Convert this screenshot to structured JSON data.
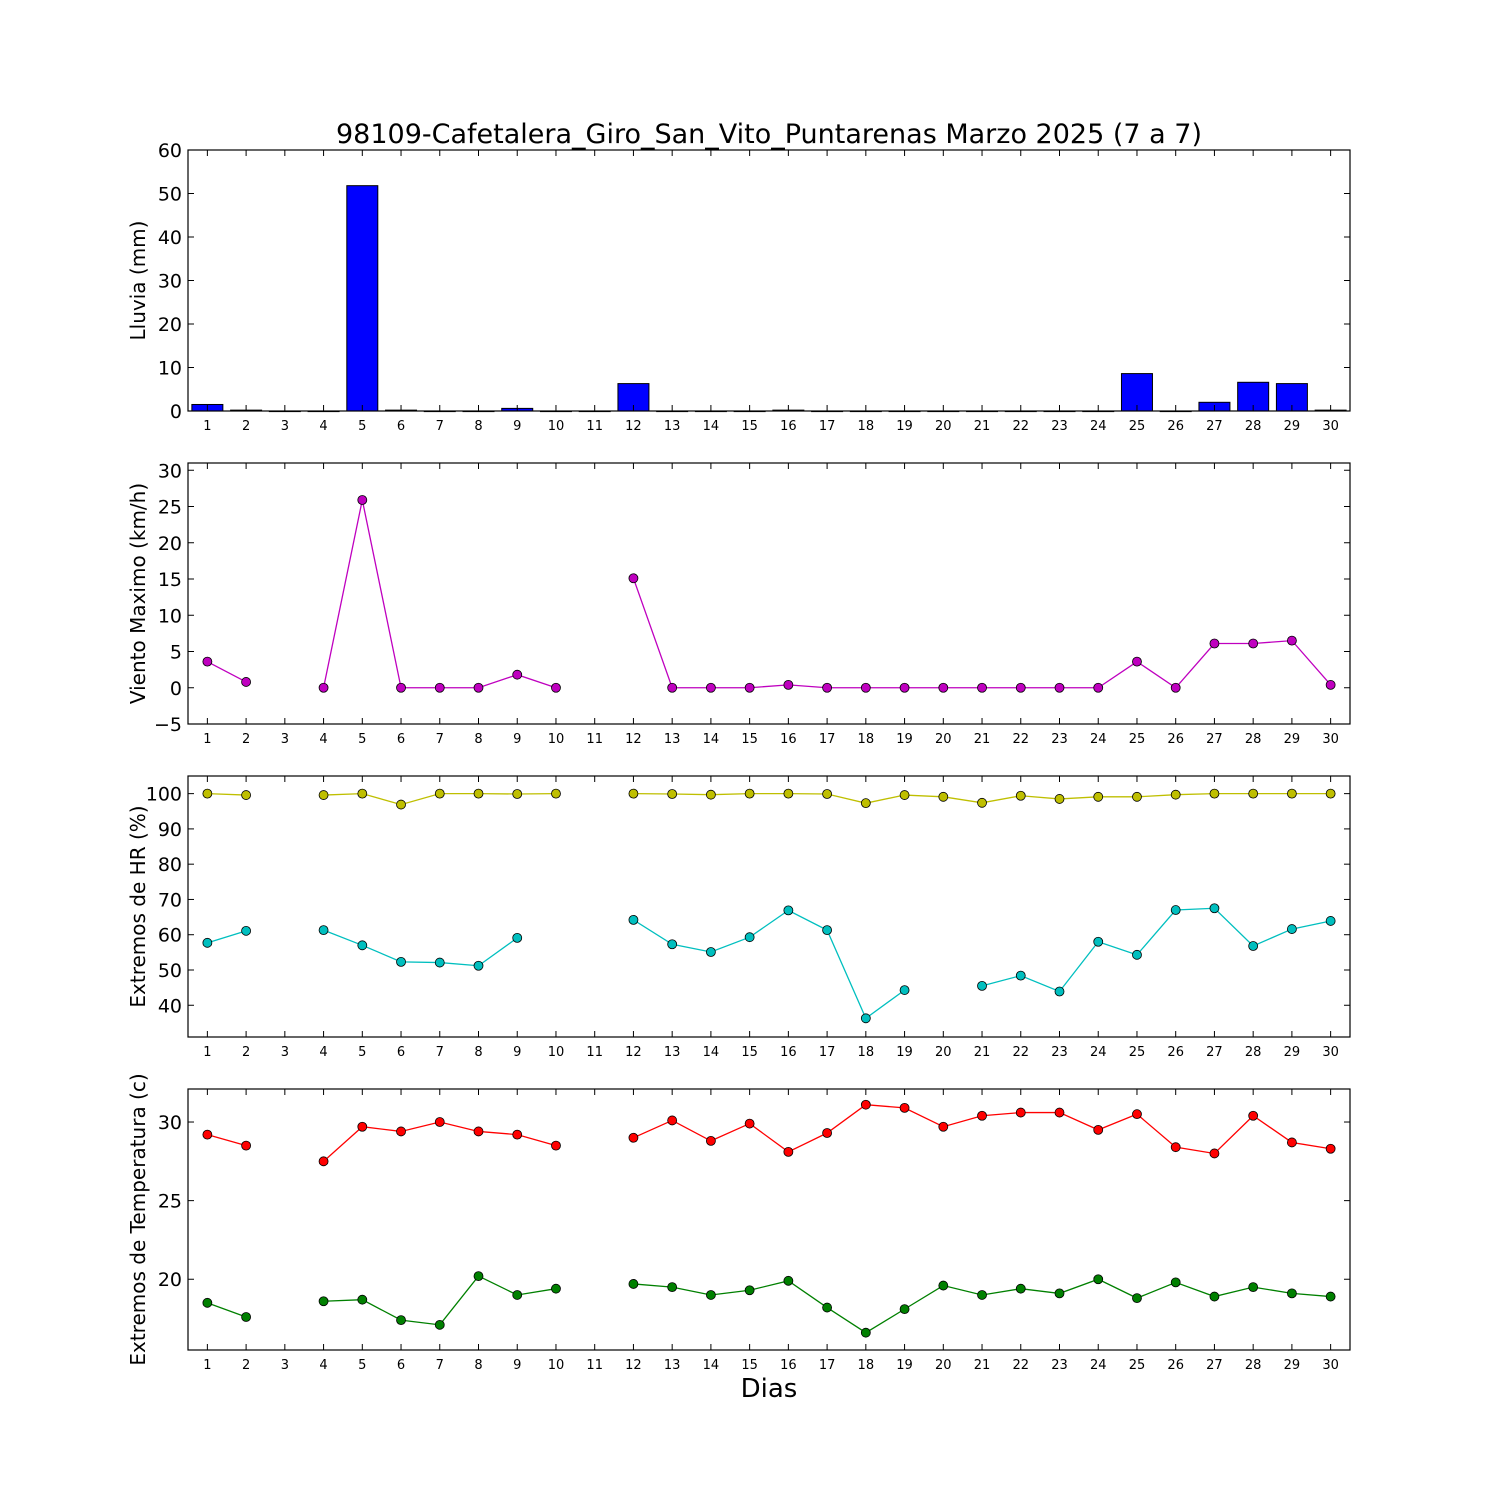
{
  "figure": {
    "title": "98109-Cafetalera_Giro_San_Vito_Puntarenas Marzo 2025  (7 a 7)",
    "xlabel": "Dias"
  },
  "chart_data": [
    {
      "type": "bar",
      "ylabel": "Lluvia (mm)",
      "ylim": [
        0,
        60
      ],
      "yticks": [
        0,
        10,
        20,
        30,
        40,
        50,
        60
      ],
      "xlim": [
        0.5,
        30.5
      ],
      "categories": [
        "1",
        "2",
        "3",
        "4",
        "5",
        "6",
        "7",
        "8",
        "9",
        "10",
        "11",
        "12",
        "13",
        "14",
        "15",
        "16",
        "17",
        "18",
        "19",
        "20",
        "21",
        "22",
        "23",
        "24",
        "25",
        "26",
        "27",
        "28",
        "29",
        "30"
      ],
      "grid": false,
      "color": "#0000ff",
      "values": [
        1.5,
        0.2,
        0,
        0,
        51.8,
        0.2,
        0,
        0,
        0.6,
        0,
        0,
        6.3,
        0,
        0,
        0,
        0.2,
        0,
        0,
        0,
        0,
        0,
        0,
        0,
        0,
        8.6,
        0,
        2.0,
        6.6,
        6.3,
        0.2
      ]
    },
    {
      "type": "line",
      "ylabel": "Viento Maximo (km/h)",
      "ylim": [
        -5,
        31
      ],
      "yticks": [
        -5,
        0,
        5,
        10,
        15,
        20,
        25,
        30
      ],
      "xlim": [
        0.5,
        30.5
      ],
      "categories": [
        "1",
        "2",
        "3",
        "4",
        "5",
        "6",
        "7",
        "8",
        "9",
        "10",
        "11",
        "12",
        "13",
        "14",
        "15",
        "16",
        "17",
        "18",
        "19",
        "20",
        "21",
        "22",
        "23",
        "24",
        "25",
        "26",
        "27",
        "28",
        "29",
        "30"
      ],
      "grid": false,
      "series": [
        {
          "color": "#bf00bf",
          "values": [
            3.6,
            0.8,
            null,
            0,
            25.9,
            0,
            0,
            0,
            1.8,
            0,
            null,
            15.1,
            0,
            0,
            0,
            0.4,
            0,
            0,
            0,
            0,
            0,
            0,
            0,
            0,
            3.6,
            0,
            6.1,
            6.1,
            6.5,
            0.4
          ]
        }
      ]
    },
    {
      "type": "line",
      "ylabel": "Extremos de HR (%)",
      "ylim": [
        31,
        105
      ],
      "yticks": [
        40,
        50,
        60,
        70,
        80,
        90,
        100
      ],
      "xlim": [
        0.5,
        30.5
      ],
      "categories": [
        "1",
        "2",
        "3",
        "4",
        "5",
        "6",
        "7",
        "8",
        "9",
        "10",
        "11",
        "12",
        "13",
        "14",
        "15",
        "16",
        "17",
        "18",
        "19",
        "20",
        "21",
        "22",
        "23",
        "24",
        "25",
        "26",
        "27",
        "28",
        "29",
        "30"
      ],
      "grid": false,
      "series": [
        {
          "color": "#bfbf00",
          "values": [
            100,
            99.6,
            null,
            99.6,
            100,
            96.9,
            100,
            100,
            99.9,
            100,
            null,
            100,
            99.9,
            99.7,
            100,
            100,
            99.9,
            97.3,
            99.6,
            99.1,
            97.4,
            99.4,
            98.5,
            99.1,
            99.1,
            99.7,
            100,
            100,
            100,
            100
          ]
        },
        {
          "color": "#00bfbf",
          "values": [
            57.7,
            61.1,
            null,
            61.3,
            57.0,
            52.3,
            52.1,
            51.2,
            59.1,
            null,
            null,
            64.2,
            57.3,
            55.1,
            59.3,
            66.9,
            61.3,
            36.3,
            44.3,
            null,
            45.5,
            48.4,
            43.9,
            58.0,
            54.3,
            67.0,
            67.5,
            56.8,
            61.6,
            63.9
          ]
        }
      ]
    },
    {
      "type": "line",
      "ylabel": "Extremos de Temperatura (c)",
      "ylim": [
        15.5,
        32.1
      ],
      "yticks": [
        20,
        25,
        30
      ],
      "xlim": [
        0.5,
        30.5
      ],
      "categories": [
        "1",
        "2",
        "3",
        "4",
        "5",
        "6",
        "7",
        "8",
        "9",
        "10",
        "11",
        "12",
        "13",
        "14",
        "15",
        "16",
        "17",
        "18",
        "19",
        "20",
        "21",
        "22",
        "23",
        "24",
        "25",
        "26",
        "27",
        "28",
        "29",
        "30"
      ],
      "grid": false,
      "series": [
        {
          "color": "#ff0000",
          "values": [
            29.2,
            28.5,
            null,
            27.5,
            29.7,
            29.4,
            30.0,
            29.4,
            29.2,
            28.5,
            null,
            29.0,
            30.1,
            28.8,
            29.9,
            28.1,
            29.3,
            31.1,
            30.9,
            29.7,
            30.4,
            30.6,
            30.6,
            29.5,
            30.5,
            28.4,
            28.0,
            30.4,
            28.7,
            28.3
          ]
        },
        {
          "color": "#008000",
          "values": [
            18.5,
            17.6,
            null,
            18.6,
            18.7,
            17.4,
            17.1,
            20.2,
            19.0,
            19.4,
            null,
            19.7,
            19.5,
            19.0,
            19.3,
            19.9,
            18.2,
            16.6,
            18.1,
            19.6,
            19.0,
            19.4,
            19.1,
            20.0,
            18.8,
            19.8,
            18.9,
            19.5,
            19.1,
            18.9
          ]
        }
      ]
    }
  ]
}
